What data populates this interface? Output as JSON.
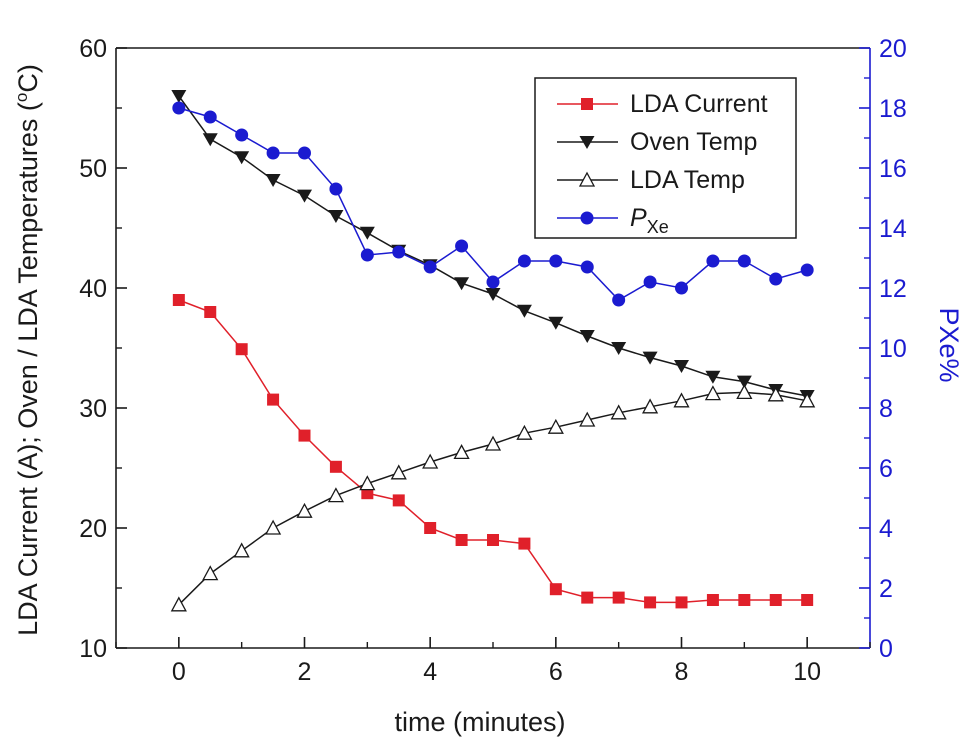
{
  "chart_data": {
    "type": "line",
    "xlabel": "time (minutes)",
    "ylabel_left": "LDA Current (A); Oven / LDA Temperatures (",
    "ylabel_left_degree": "o",
    "ylabel_left_unit": "C)",
    "ylabel_right": "PXe%",
    "xlim": [
      -1,
      11
    ],
    "ylim_left": [
      10,
      60
    ],
    "ylim_right": [
      0,
      20
    ],
    "x_ticks": [
      0,
      2,
      4,
      6,
      8,
      10
    ],
    "y_left_ticks": [
      10,
      20,
      30,
      40,
      50,
      60
    ],
    "y_right_ticks": [
      0,
      2,
      4,
      6,
      8,
      10,
      12,
      14,
      16,
      18,
      20
    ],
    "grid": false,
    "legend_position": "top-right",
    "x": [
      0,
      0.5,
      1,
      1.5,
      2,
      2.5,
      3,
      3.5,
      4,
      4.5,
      5,
      5.5,
      6,
      6.5,
      7,
      7.5,
      8,
      8.5,
      9,
      9.5,
      10
    ],
    "series": [
      {
        "name": "LDA Current",
        "axis": "left",
        "color": "#e0202a",
        "marker": "square",
        "values": [
          39.0,
          38.0,
          34.9,
          30.7,
          27.7,
          25.1,
          22.9,
          22.3,
          20.0,
          19.0,
          19.0,
          18.7,
          14.9,
          14.2,
          14.2,
          13.8,
          13.8,
          14.0,
          14.0,
          14.0,
          14.0
        ]
      },
      {
        "name": "Oven Temp",
        "axis": "left",
        "color": "#1a1a1a",
        "marker": "triangle-down",
        "values": [
          56.0,
          52.4,
          50.9,
          49.0,
          47.7,
          46.0,
          44.6,
          43.1,
          41.9,
          40.4,
          39.5,
          38.1,
          37.1,
          36.0,
          35.0,
          34.2,
          33.5,
          32.6,
          32.2,
          31.5,
          31.0
        ]
      },
      {
        "name": "LDA Temp",
        "axis": "left",
        "color": "#1a1a1a",
        "marker": "triangle-up-open",
        "values": [
          13.6,
          16.2,
          18.1,
          20.0,
          21.4,
          22.7,
          23.7,
          24.6,
          25.5,
          26.3,
          27.0,
          27.9,
          28.4,
          29.0,
          29.6,
          30.1,
          30.6,
          31.2,
          31.3,
          31.1,
          30.6
        ]
      },
      {
        "name": "P",
        "name_subscript": "Xe",
        "axis": "right",
        "color": "#1b1bd0",
        "marker": "circle",
        "values": [
          18.0,
          17.7,
          17.1,
          16.5,
          16.5,
          15.3,
          13.1,
          13.2,
          12.7,
          13.4,
          12.2,
          12.9,
          12.9,
          12.7,
          11.6,
          12.2,
          12.0,
          12.9,
          12.9,
          12.3,
          12.6
        ]
      }
    ]
  }
}
